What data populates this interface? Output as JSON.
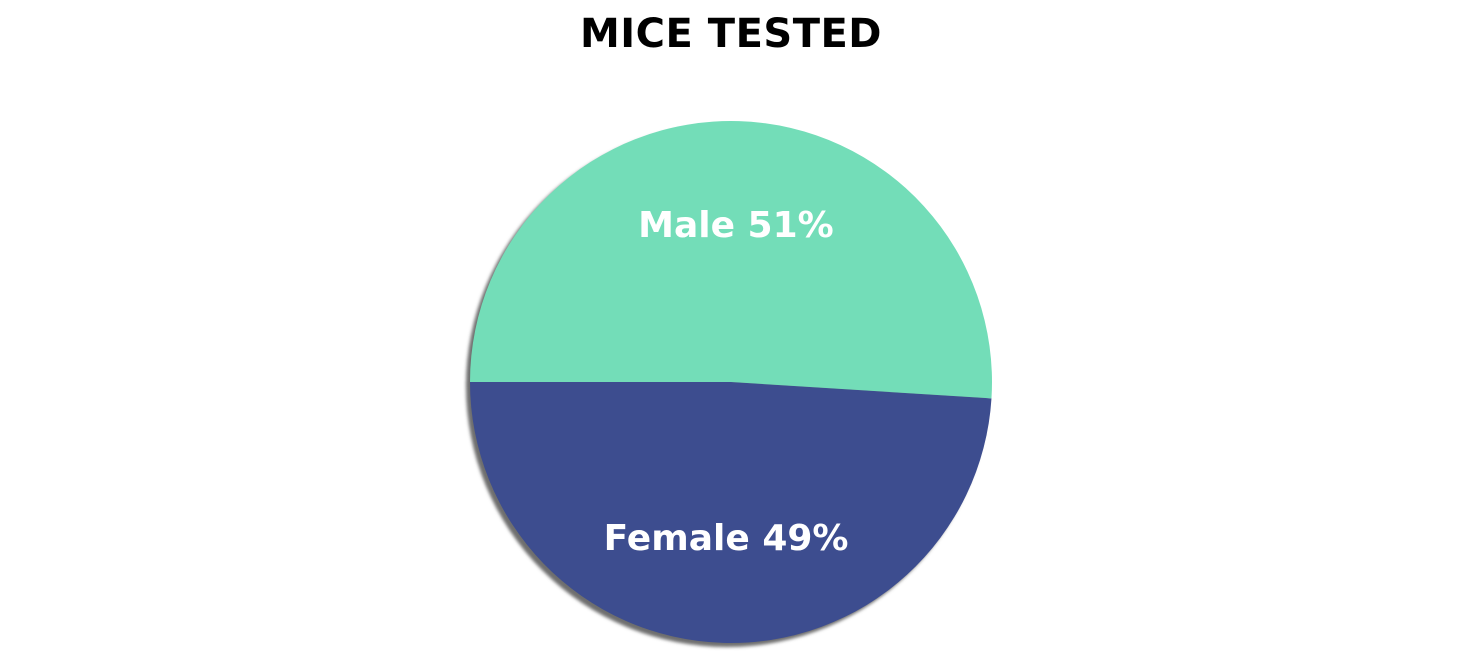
{
  "chart_data": {
    "type": "pie",
    "title": "MICE TESTED",
    "slices": [
      {
        "label": "Female",
        "value": 49,
        "display": "Female 49%",
        "color": "#3d4d8f"
      },
      {
        "label": "Male",
        "value": 51,
        "display": "Male 51%",
        "color": "#73ddb8"
      }
    ],
    "shadow": true,
    "label_color": "#ffffff"
  }
}
